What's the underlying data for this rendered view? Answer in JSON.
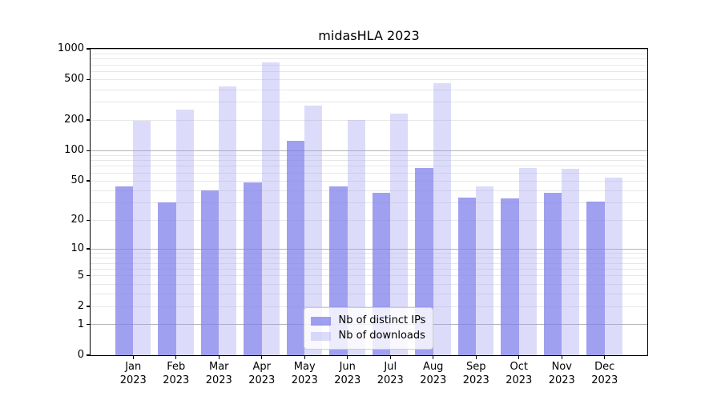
{
  "figure": {
    "background": "#ffffff"
  },
  "chart_data": {
    "type": "bar",
    "title": "midasHLA 2023",
    "categories": [
      {
        "month": "Jan",
        "year": "2023"
      },
      {
        "month": "Feb",
        "year": "2023"
      },
      {
        "month": "Mar",
        "year": "2023"
      },
      {
        "month": "Apr",
        "year": "2023"
      },
      {
        "month": "May",
        "year": "2023"
      },
      {
        "month": "Jun",
        "year": "2023"
      },
      {
        "month": "Jul",
        "year": "2023"
      },
      {
        "month": "Aug",
        "year": "2023"
      },
      {
        "month": "Sep",
        "year": "2023"
      },
      {
        "month": "Oct",
        "year": "2023"
      },
      {
        "month": "Nov",
        "year": "2023"
      },
      {
        "month": "Dec",
        "year": "2023"
      }
    ],
    "series": [
      {
        "name": "Nb of distinct IPs",
        "key": "distinct-ips",
        "color": "rgba(128,128,235,0.75)",
        "values": [
          44,
          30,
          40,
          48,
          124,
          44,
          38,
          67,
          34,
          33,
          38,
          31
        ]
      },
      {
        "name": "Nb of downloads",
        "key": "downloads",
        "color": "rgba(155,155,240,0.35)",
        "values": [
          197,
          250,
          430,
          730,
          275,
          199,
          232,
          456,
          44,
          67,
          66,
          54
        ]
      }
    ],
    "yscale": "log1p",
    "ylim": [
      0,
      1000
    ],
    "yticks": [
      1000,
      500,
      200,
      100,
      50,
      20,
      10,
      5,
      2,
      1,
      0
    ],
    "grid": {
      "major": [
        1,
        10,
        100,
        1000
      ],
      "minor": [
        2,
        3,
        4,
        5,
        6,
        7,
        8,
        9,
        20,
        30,
        40,
        50,
        60,
        70,
        80,
        90,
        200,
        300,
        400,
        500,
        600,
        700,
        800,
        900
      ],
      "major_color": "#b5b5b5",
      "minor_color": "#e8e8e8"
    },
    "legend": {
      "position": "bottom-center",
      "entries": [
        "Nb of distinct IPs",
        "Nb of downloads"
      ]
    }
  }
}
